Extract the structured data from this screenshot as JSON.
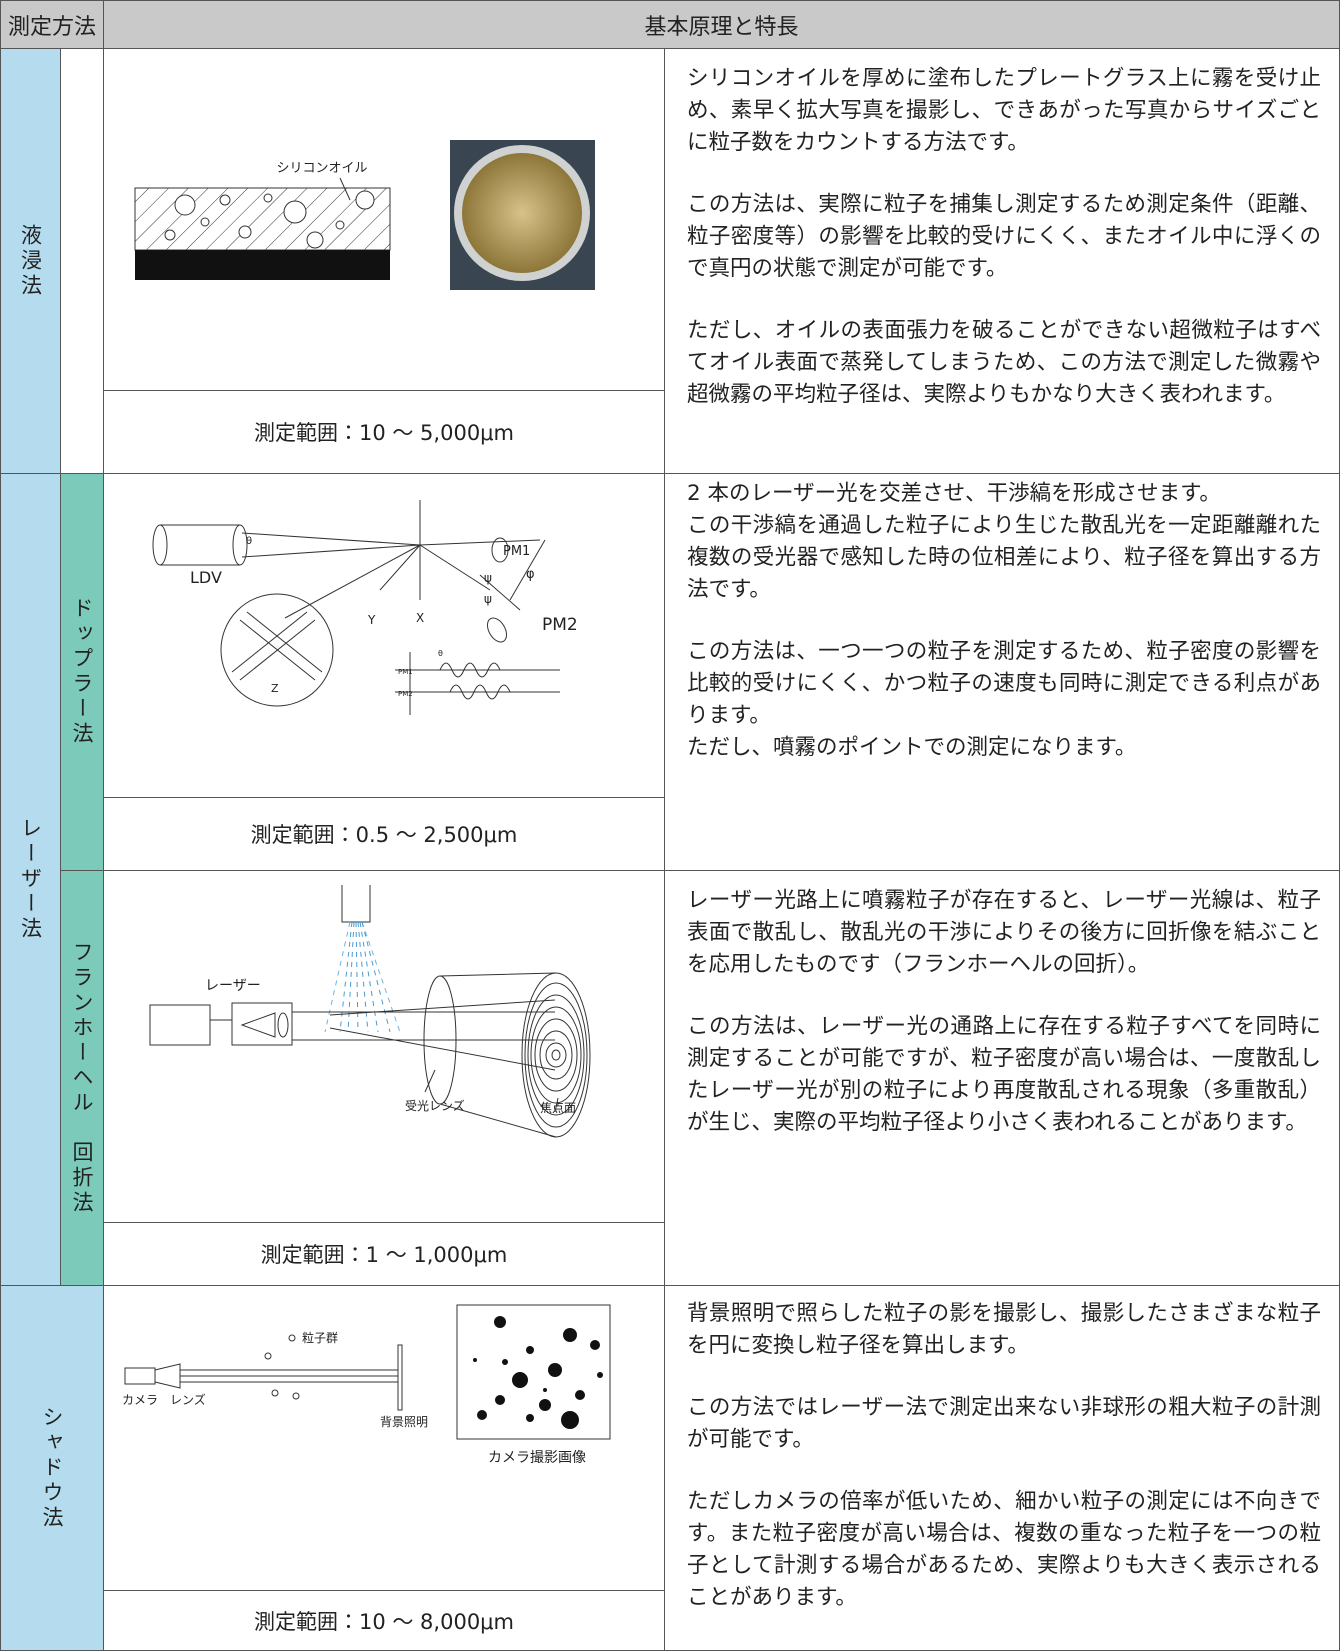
{
  "header": {
    "method": "測定方法",
    "principle": "基本原理と特長"
  },
  "sections": [
    {
      "method": "液浸法",
      "range": "測定範囲：10 ～ 5,000μm",
      "blocks": [
        [
          "シリコンオイルを厚めに塗布したプレートグラス上に霧を受け止め、素早く拡大写真を撮影し、できあがった写真からサイズごとに粒子数をカウントする方法です。"
        ],
        [
          "この方法は、実際に粒子を捕集し測定するため測定条件（距離、粒子密度等）の影響を比較的受けにくく、またオイル中に浮くので真円の状態で測定が可能です。"
        ],
        [
          "ただし、オイルの表面張力を破ることができない超微粒子はすべてオイル表面で蒸発してしまうため、この方法で測定した微霧や超微霧の平均粒子径は、実際よりもかなり大きく表われます。"
        ]
      ],
      "labels": [
        "シリコンオイル"
      ]
    },
    {
      "method": "レーザー法",
      "subsections": [
        {
          "method": "ドップラー法",
          "range": "測定範囲：0.5 ～ 2,500μm",
          "blocks": [
            [
              "2 本のレーザー光を交差させ、干渉縞を形成させます。",
              "この干渉縞を通過した粒子により生じた散乱光を一定距離離れた複数の受光器で感知した時の位相差により、粒子径を算出する方法です。"
            ],
            [
              "この方法は、一つ一つの粒子を測定するため、粒子密度の影響を比較的受けにくく、かつ粒子の速度も同時に測定できる利点があります。",
              "ただし、噴霧のポイントでの測定になります。"
            ]
          ],
          "labels": [
            "LDV",
            "Y",
            "X",
            "Z",
            "PM1",
            "PM2",
            "φ",
            "ψ",
            "ψ",
            "θ",
            "θ",
            "PM1",
            "PM2"
          ]
        },
        {
          "method": "フランホーヘル　回折法",
          "range": "測定範囲：1 ～ 1,000μm",
          "blocks": [
            [
              "レーザー光路上に噴霧粒子が存在すると、レーザー光線は、粒子表面で散乱し、散乱光の干渉によりその後方に回折像を結ぶことを応用したものです（フランホーヘルの回折）。"
            ],
            [
              "この方法は、レーザー光の通路上に存在する粒子すべてを同時に測定することが可能ですが、粒子密度が高い場合は、一度散乱したレーザー光が別の粒子により再度散乱される現象（多重散乱）が生じ、実際の平均粒子径より小さく表われることがあります。"
            ]
          ],
          "labels": [
            "レーザー",
            "受光レンズ",
            "焦点面"
          ]
        }
      ]
    },
    {
      "method": "シャドウ法",
      "range": "測定範囲：10 ～ 8,000μm",
      "blocks": [
        [
          "背景照明で照らした粒子の影を撮影し、撮影したさまざまな粒子を円に変換し粒子径を算出します。"
        ],
        [
          "この方法ではレーザー法で測定出来ない非球形の粗大粒子の計測が可能です。"
        ],
        [
          "ただしカメラの倍率が低いため、細かい粒子の測定には不向きです。また粒子密度が高い場合は、複数の重なった粒子を一つの粒子として計測する場合があるため、実際よりも大きく表示されることがあります。"
        ]
      ],
      "labels": [
        "粒子群",
        "カメラ",
        "レンズ",
        "背景照明",
        "カメラ撮影画像"
      ]
    }
  ]
}
